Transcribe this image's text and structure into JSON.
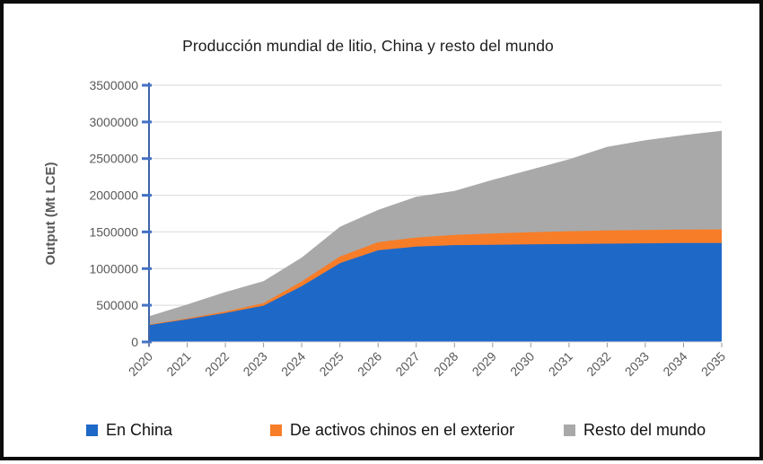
{
  "chart_data": {
    "type": "area",
    "stacked": true,
    "title": "Producción mundial de litio, China y resto del mundo",
    "ylabel": "Output (Mt LCE)",
    "xlabel": "",
    "x": [
      2020,
      2021,
      2022,
      2023,
      2024,
      2025,
      2026,
      2027,
      2028,
      2029,
      2030,
      2031,
      2032,
      2033,
      2034,
      2035
    ],
    "series": [
      {
        "name": "En China",
        "color": "#1E69C8",
        "values": [
          230000,
          310000,
          395000,
          495000,
          760000,
          1075000,
          1250000,
          1300000,
          1320000,
          1325000,
          1330000,
          1335000,
          1340000,
          1345000,
          1350000,
          1350000
        ]
      },
      {
        "name": "De activos chinos en el exterior",
        "color": "#F87D28",
        "values": [
          8000,
          12000,
          20000,
          35000,
          65000,
          90000,
          110000,
          125000,
          140000,
          155000,
          165000,
          175000,
          180000,
          182000,
          184000,
          185000
        ]
      },
      {
        "name": "Resto del mundo",
        "color": "#A9A9A9",
        "values": [
          112000,
          190000,
          265000,
          300000,
          325000,
          405000,
          440000,
          555000,
          600000,
          730000,
          855000,
          980000,
          1140000,
          1223000,
          1286000,
          1345000
        ]
      }
    ],
    "ylim": [
      0,
      3500000
    ],
    "yticks": [
      0,
      500000,
      1000000,
      1500000,
      2000000,
      2500000,
      3000000,
      3500000
    ],
    "grid": true,
    "legend_position": "bottom",
    "axis_color": "#3C64A8",
    "ytick_mark_color": "#4472C4",
    "xtick_mark_color": "#9a9a9a",
    "grid_color": "#D9D9D9",
    "tick_label_color": "#595959"
  }
}
